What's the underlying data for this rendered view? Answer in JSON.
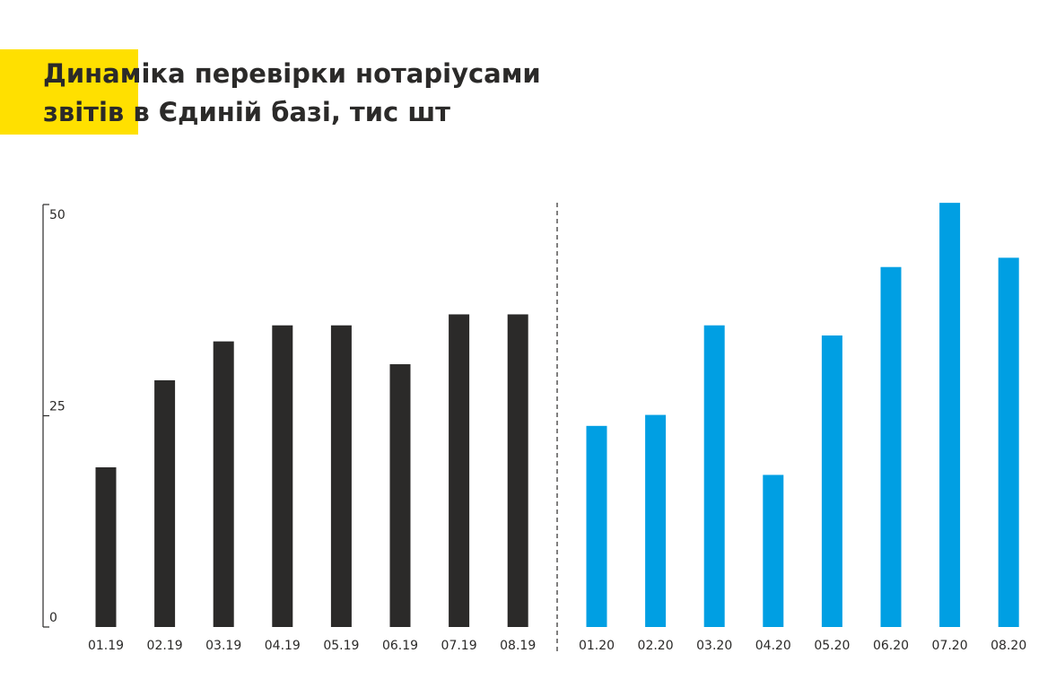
{
  "chart_data": {
    "type": "bar",
    "title_lines": [
      "Динаміка перевірки нотаріусами",
      "звітів в Єдиній базі, тис шт"
    ],
    "groups": [
      {
        "categories": [
          "01.19",
          "02.19",
          "03.19",
          "04.19",
          "05.19",
          "06.19",
          "07.19",
          "08.19"
        ],
        "values": [
          18.9,
          29.2,
          33.8,
          35.7,
          35.7,
          31.1,
          37.0,
          37.0
        ],
        "color": "#2b2a29"
      },
      {
        "categories": [
          "01.20",
          "02.20",
          "03.20",
          "04.20",
          "05.20",
          "06.20",
          "07.20",
          "08.20"
        ],
        "values": [
          23.8,
          25.1,
          35.7,
          18.0,
          34.5,
          42.6,
          50.2,
          43.7
        ],
        "color": "#009fe3"
      }
    ],
    "ylim": [
      0,
      50
    ],
    "yticks": [
      0,
      25,
      50
    ]
  }
}
